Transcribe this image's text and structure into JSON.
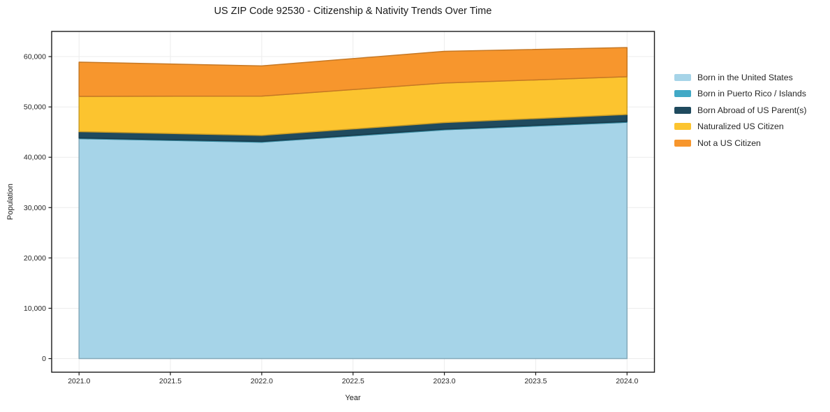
{
  "page": {
    "title": "US ZIP Code 92530 - Citizenship & Nativity Trends Over Time"
  },
  "chart_data": {
    "type": "area",
    "stacked": true,
    "title": "US ZIP Code 92530 - Citizenship & Nativity Trends Over Time",
    "xlabel": "Year",
    "ylabel": "Population",
    "x": [
      2021,
      2022,
      2023,
      2024
    ],
    "series": [
      {
        "name": "Born in the United States",
        "color": "#a6d4e8",
        "values": [
          43700,
          43000,
          45450,
          46950
        ]
      },
      {
        "name": "Born in Puerto Rico / Islands",
        "color": "#41a9c6",
        "values": [
          150,
          150,
          150,
          150
        ]
      },
      {
        "name": "Born Abroad of US Parent(s)",
        "color": "#1f4a5e",
        "values": [
          1250,
          1200,
          1300,
          1400
        ]
      },
      {
        "name": "Naturalized US Citizen",
        "color": "#fcc42f",
        "values": [
          7000,
          7800,
          7850,
          7500
        ]
      },
      {
        "name": "Not a US Citizen",
        "color": "#f7962d",
        "values": [
          6800,
          6000,
          6300,
          5800
        ]
      }
    ],
    "xlim": [
      2020.85,
      2024.15
    ],
    "ylim": [
      -2700,
      65000
    ],
    "xticks": [
      2021.0,
      2021.5,
      2022.0,
      2022.5,
      2023.0,
      2023.5,
      2024.0
    ],
    "yticks": [
      0,
      10000,
      20000,
      30000,
      40000,
      50000,
      60000
    ],
    "grid": true,
    "grid_color": "#ececec",
    "spine_color": "#1a1a1a",
    "legend_position": "right-outside"
  }
}
